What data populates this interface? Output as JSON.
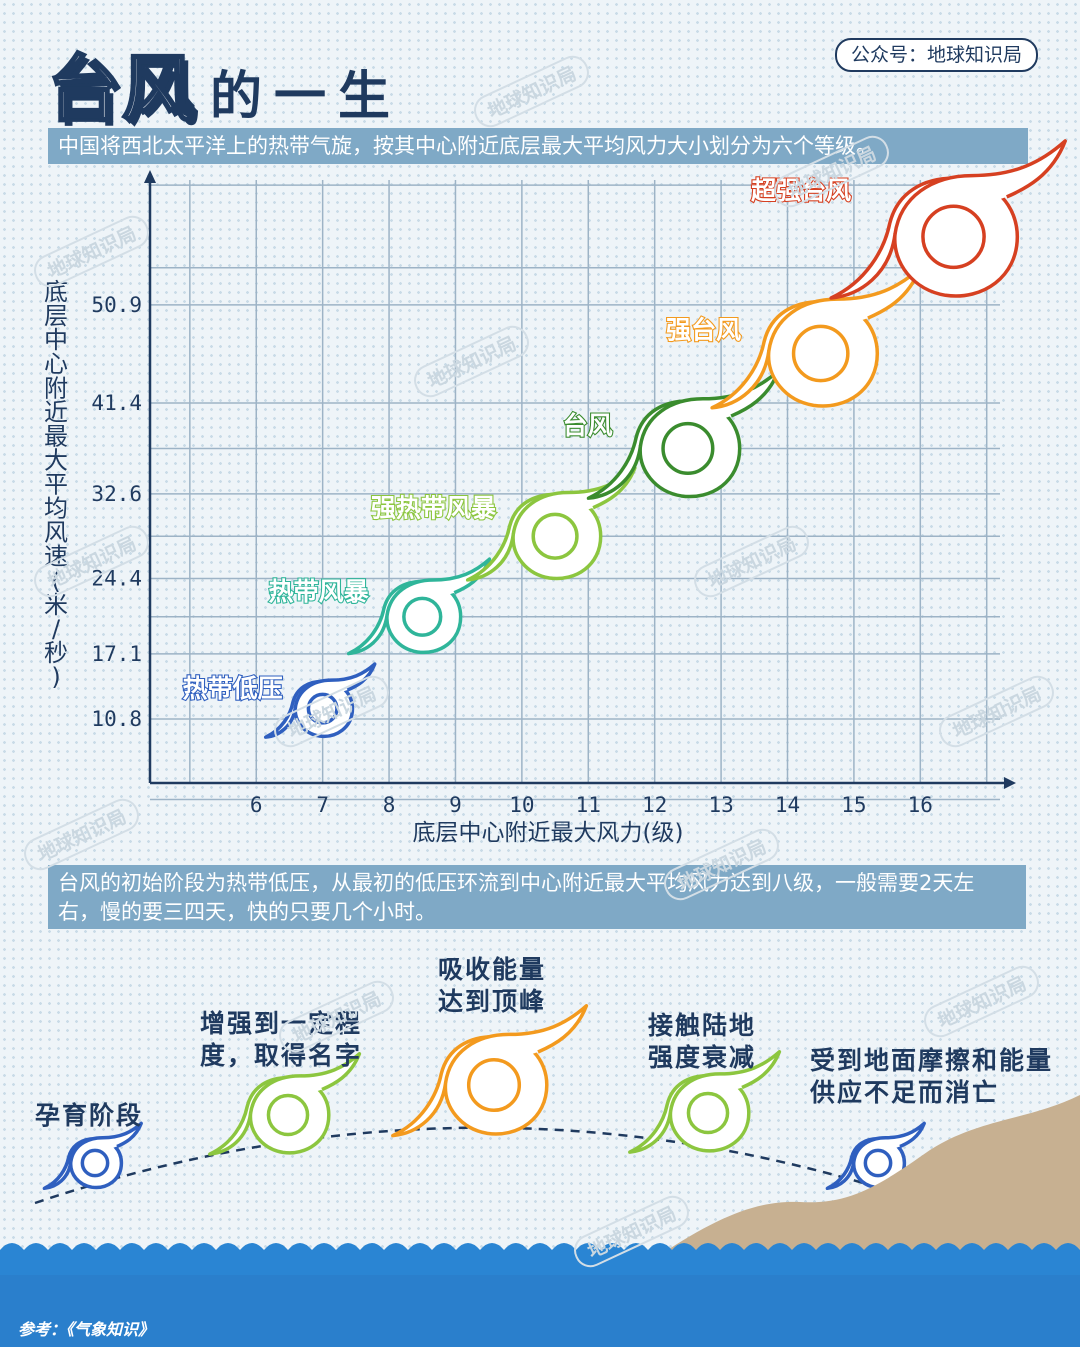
{
  "title": {
    "main": "台风",
    "sub": "的一生"
  },
  "account": "公众号：地球知识局",
  "intro": "中国将西北太平洋上的热带气旋，按其中心附近底层最大平均风力大小划分为六个等级。",
  "watermark": "地球知识局",
  "chart_data": {
    "type": "scatter",
    "xlabel": "底层中心附近最大风力(级)",
    "ylabel": "底层中心附近最大平均风速(米/秒)",
    "x_ticks": [
      6,
      7,
      8,
      9,
      10,
      11,
      12,
      13,
      14,
      15,
      16
    ],
    "y_ticks": [
      10.8,
      17.1,
      24.4,
      32.6,
      41.4,
      50.9
    ],
    "xlim": [
      4.4,
      17.2
    ],
    "ylim": [
      4.6,
      63
    ],
    "grid": true,
    "series": [
      {
        "name": "热带低压",
        "x": 7,
        "y": 11.8,
        "color": "#2f5fbf"
      },
      {
        "name": "热带风暴",
        "x": 8.5,
        "y": 20.7,
        "color": "#2fb59a"
      },
      {
        "name": "强热带风暴",
        "x": 10.5,
        "y": 28.5,
        "color": "#8cc63f"
      },
      {
        "name": "台风",
        "x": 12.5,
        "y": 37.0,
        "color": "#3a8c2e"
      },
      {
        "name": "强台风",
        "x": 14.5,
        "y": 46.2,
        "color": "#f39a1e"
      },
      {
        "name": "超强台风",
        "x": 16.5,
        "y": 57.5,
        "color": "#d64021"
      }
    ]
  },
  "lifecycle": {
    "text": "台风的初始阶段为热带低压，从最初的低压环流到中心附近最大平均风力达到八级，一般需要2天左右，慢的要三四天，快的只要几个小时。",
    "stages": [
      {
        "label": "孕育阶段",
        "color": "#2f5fbf"
      },
      {
        "label": "增强到一定程度，取得名字",
        "color": "#8cc63f"
      },
      {
        "label": "吸收能量达到顶峰",
        "color": "#f39a1e"
      },
      {
        "label": "接触陆地强度衰减",
        "color": "#8cc63f"
      },
      {
        "label": "受到地面摩擦和能量供应不足而消亡",
        "color": "#2f5fbf"
      }
    ]
  },
  "reference": "参考：《气象知识》",
  "colors": {
    "ink": "#1f3a5f",
    "banner": "#7fa9c6",
    "sea": "#2a85d3",
    "land": "#c7b091",
    "grid": "#9db3c6"
  }
}
